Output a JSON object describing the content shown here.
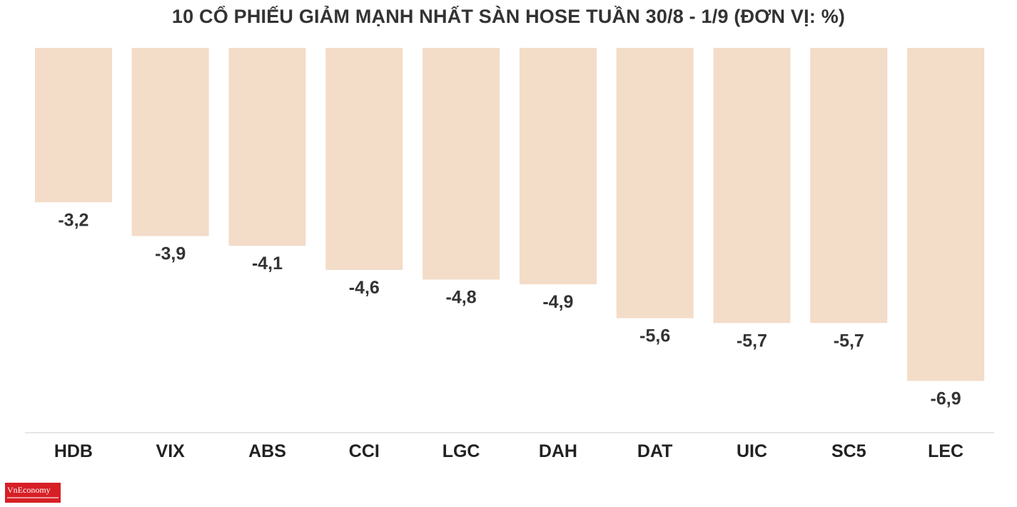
{
  "chart_data": {
    "type": "bar",
    "title": "10 CỔ PHIẾU GIẢM MẠNH NHẤT SÀN HOSE TUẦN 30/8 - 1/9 (ĐƠN VỊ: %)",
    "categories": [
      "HDB",
      "VIX",
      "ABS",
      "CCI",
      "LGC",
      "DAH",
      "DAT",
      "UIC",
      "SC5",
      "LEC"
    ],
    "values": [
      -3.2,
      -3.9,
      -4.1,
      -4.6,
      -4.8,
      -4.9,
      -5.6,
      -5.7,
      -5.7,
      -6.9
    ],
    "value_labels": [
      "-3,2",
      "-3,9",
      "-4,1",
      "-4,6",
      "-4,8",
      "-4,9",
      "-5,6",
      "-5,7",
      "-5,7",
      "-6,9"
    ],
    "xlabel": "",
    "ylabel": "",
    "ylim": [
      -8,
      0
    ],
    "grid": false,
    "bar_color": "#f3dcc8",
    "axis_color": "#dddddd"
  },
  "brand": {
    "logo_text": "VnEconomy"
  }
}
